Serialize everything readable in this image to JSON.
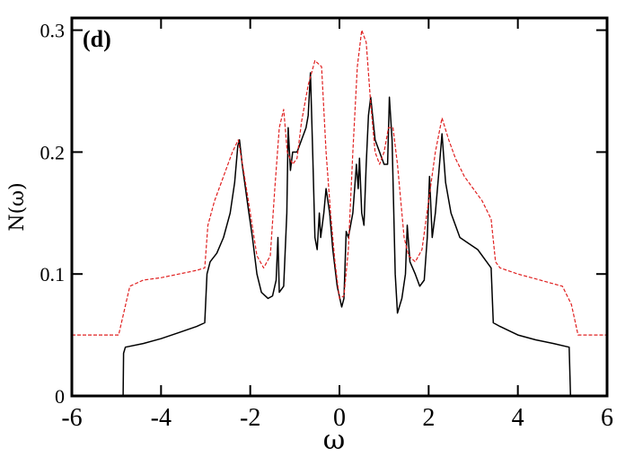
{
  "chart_data": {
    "type": "line",
    "panel_label": "(d)",
    "xlabel": "ω",
    "ylabel": "N(ω)",
    "xlim": [
      -6,
      6
    ],
    "ylim": [
      0,
      0.31
    ],
    "x_ticks": [
      -6,
      -4,
      -2,
      0,
      2,
      4,
      6
    ],
    "y_ticks": [
      0,
      0.1,
      0.2,
      0.3
    ],
    "x_tick_labels": [
      "-6",
      "-4",
      "-2",
      "0",
      "2",
      "4",
      "6"
    ],
    "y_tick_labels": [
      "0",
      "0.1",
      "0.2",
      "0.3"
    ],
    "grid": false,
    "series": [
      {
        "style": "solid",
        "color": "#000000",
        "points": [
          [
            -4.85,
            0.0
          ],
          [
            -4.84,
            0.035
          ],
          [
            -4.8,
            0.04
          ],
          [
            -4.4,
            0.043
          ],
          [
            -4.0,
            0.047
          ],
          [
            -3.6,
            0.052
          ],
          [
            -3.2,
            0.057
          ],
          [
            -3.02,
            0.06
          ],
          [
            -2.97,
            0.1
          ],
          [
            -2.9,
            0.11
          ],
          [
            -2.75,
            0.117
          ],
          [
            -2.6,
            0.13
          ],
          [
            -2.45,
            0.15
          ],
          [
            -2.35,
            0.175
          ],
          [
            -2.28,
            0.205
          ],
          [
            -2.24,
            0.21
          ],
          [
            -2.18,
            0.19
          ],
          [
            -2.05,
            0.155
          ],
          [
            -1.95,
            0.13
          ],
          [
            -1.85,
            0.1
          ],
          [
            -1.75,
            0.085
          ],
          [
            -1.6,
            0.08
          ],
          [
            -1.5,
            0.082
          ],
          [
            -1.42,
            0.095
          ],
          [
            -1.38,
            0.13
          ],
          [
            -1.35,
            0.085
          ],
          [
            -1.25,
            0.09
          ],
          [
            -1.18,
            0.15
          ],
          [
            -1.15,
            0.22
          ],
          [
            -1.1,
            0.185
          ],
          [
            -1.05,
            0.2
          ],
          [
            -0.95,
            0.2
          ],
          [
            -0.85,
            0.21
          ],
          [
            -0.75,
            0.22
          ],
          [
            -0.7,
            0.23
          ],
          [
            -0.65,
            0.265
          ],
          [
            -0.6,
            0.2
          ],
          [
            -0.55,
            0.13
          ],
          [
            -0.5,
            0.12
          ],
          [
            -0.45,
            0.15
          ],
          [
            -0.42,
            0.13
          ],
          [
            -0.35,
            0.15
          ],
          [
            -0.3,
            0.17
          ],
          [
            -0.22,
            0.15
          ],
          [
            -0.15,
            0.12
          ],
          [
            -0.05,
            0.09
          ],
          [
            0.05,
            0.073
          ],
          [
            0.1,
            0.08
          ],
          [
            0.15,
            0.135
          ],
          [
            0.2,
            0.13
          ],
          [
            0.25,
            0.14
          ],
          [
            0.3,
            0.15
          ],
          [
            0.38,
            0.19
          ],
          [
            0.42,
            0.17
          ],
          [
            0.45,
            0.195
          ],
          [
            0.5,
            0.15
          ],
          [
            0.55,
            0.14
          ],
          [
            0.6,
            0.19
          ],
          [
            0.65,
            0.23
          ],
          [
            0.7,
            0.245
          ],
          [
            0.8,
            0.21
          ],
          [
            0.9,
            0.2
          ],
          [
            1.0,
            0.19
          ],
          [
            1.08,
            0.19
          ],
          [
            1.12,
            0.245
          ],
          [
            1.18,
            0.21
          ],
          [
            1.25,
            0.1
          ],
          [
            1.3,
            0.068
          ],
          [
            1.4,
            0.08
          ],
          [
            1.48,
            0.1
          ],
          [
            1.52,
            0.14
          ],
          [
            1.58,
            0.11
          ],
          [
            1.7,
            0.1
          ],
          [
            1.8,
            0.09
          ],
          [
            1.9,
            0.095
          ],
          [
            1.97,
            0.13
          ],
          [
            2.02,
            0.18
          ],
          [
            2.08,
            0.13
          ],
          [
            2.15,
            0.15
          ],
          [
            2.22,
            0.18
          ],
          [
            2.3,
            0.215
          ],
          [
            2.38,
            0.175
          ],
          [
            2.5,
            0.15
          ],
          [
            2.7,
            0.13
          ],
          [
            2.9,
            0.125
          ],
          [
            3.1,
            0.12
          ],
          [
            3.3,
            0.11
          ],
          [
            3.4,
            0.105
          ],
          [
            3.45,
            0.06
          ],
          [
            3.6,
            0.057
          ],
          [
            4.0,
            0.05
          ],
          [
            4.4,
            0.046
          ],
          [
            4.8,
            0.043
          ],
          [
            5.15,
            0.04
          ],
          [
            5.18,
            0.0
          ]
        ]
      },
      {
        "style": "dashed",
        "color": "#e02020",
        "points": [
          [
            -6.0,
            0.05
          ],
          [
            -4.95,
            0.05
          ],
          [
            -4.7,
            0.09
          ],
          [
            -4.4,
            0.095
          ],
          [
            -4.0,
            0.097
          ],
          [
            -3.6,
            0.1
          ],
          [
            -3.2,
            0.103
          ],
          [
            -3.02,
            0.105
          ],
          [
            -2.95,
            0.14
          ],
          [
            -2.8,
            0.16
          ],
          [
            -2.6,
            0.18
          ],
          [
            -2.4,
            0.2
          ],
          [
            -2.27,
            0.21
          ],
          [
            -2.15,
            0.185
          ],
          [
            -2.0,
            0.15
          ],
          [
            -1.85,
            0.115
          ],
          [
            -1.7,
            0.105
          ],
          [
            -1.55,
            0.115
          ],
          [
            -1.45,
            0.17
          ],
          [
            -1.35,
            0.22
          ],
          [
            -1.25,
            0.235
          ],
          [
            -1.17,
            0.2
          ],
          [
            -1.05,
            0.19
          ],
          [
            -0.95,
            0.195
          ],
          [
            -0.85,
            0.225
          ],
          [
            -0.7,
            0.255
          ],
          [
            -0.55,
            0.275
          ],
          [
            -0.4,
            0.27
          ],
          [
            -0.3,
            0.2
          ],
          [
            -0.2,
            0.15
          ],
          [
            -0.1,
            0.11
          ],
          [
            0.0,
            0.08
          ],
          [
            0.1,
            0.082
          ],
          [
            0.2,
            0.12
          ],
          [
            0.3,
            0.2
          ],
          [
            0.4,
            0.27
          ],
          [
            0.5,
            0.3
          ],
          [
            0.6,
            0.29
          ],
          [
            0.7,
            0.24
          ],
          [
            0.8,
            0.2
          ],
          [
            0.9,
            0.19
          ],
          [
            1.0,
            0.2
          ],
          [
            1.1,
            0.22
          ],
          [
            1.2,
            0.22
          ],
          [
            1.3,
            0.19
          ],
          [
            1.45,
            0.13
          ],
          [
            1.55,
            0.115
          ],
          [
            1.7,
            0.11
          ],
          [
            1.85,
            0.12
          ],
          [
            2.0,
            0.16
          ],
          [
            2.15,
            0.2
          ],
          [
            2.3,
            0.228
          ],
          [
            2.45,
            0.21
          ],
          [
            2.6,
            0.195
          ],
          [
            2.8,
            0.18
          ],
          [
            3.0,
            0.17
          ],
          [
            3.2,
            0.16
          ],
          [
            3.4,
            0.145
          ],
          [
            3.5,
            0.11
          ],
          [
            3.6,
            0.105
          ],
          [
            4.0,
            0.1
          ],
          [
            4.4,
            0.096
          ],
          [
            4.8,
            0.092
          ],
          [
            5.0,
            0.09
          ],
          [
            5.2,
            0.075
          ],
          [
            5.35,
            0.05
          ],
          [
            6.0,
            0.05
          ]
        ]
      }
    ]
  }
}
